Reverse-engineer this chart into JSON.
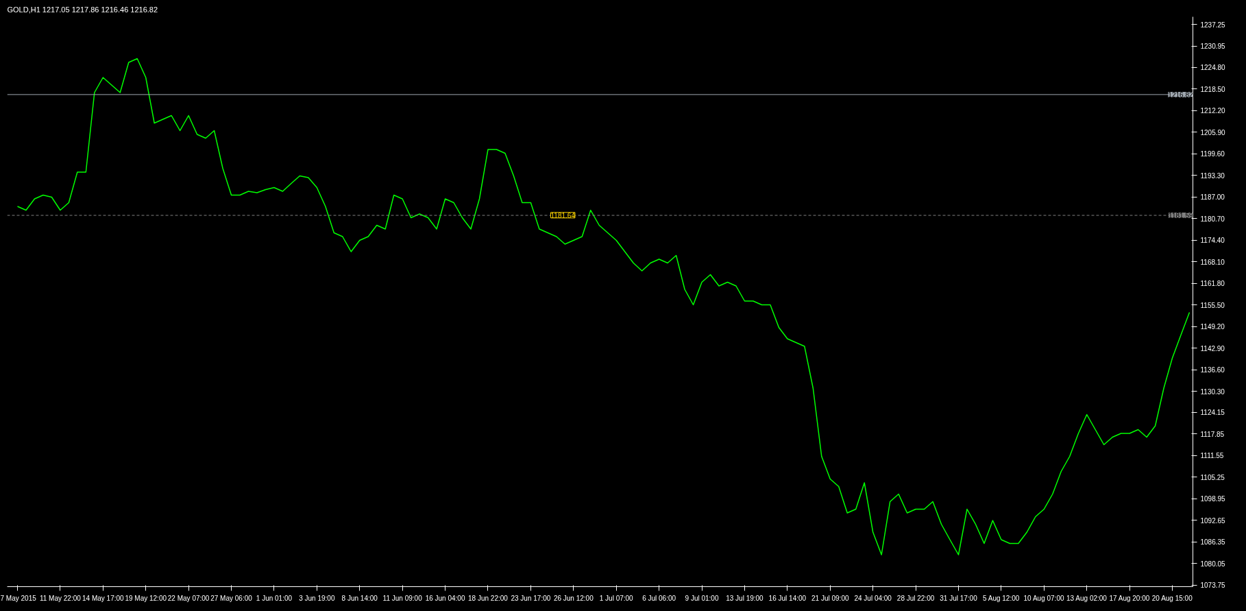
{
  "chart_data": {
    "type": "line",
    "title": "GOLD,H1  1217.05 1217.86 1216.46 1216.82",
    "categories": [
      "7 May 2015",
      null,
      null,
      null,
      null,
      "11 May 22:00",
      null,
      null,
      null,
      null,
      "14 May 17:00",
      null,
      null,
      null,
      null,
      "19 May 12:00",
      null,
      null,
      null,
      null,
      "22 May 07:00",
      null,
      null,
      null,
      null,
      "27 May 06:00",
      null,
      null,
      null,
      null,
      "1 Jun 01:00",
      null,
      null,
      null,
      null,
      "3 Jun 19:00",
      null,
      null,
      null,
      null,
      "8 Jun 14:00",
      null,
      null,
      null,
      null,
      "11 Jun 09:00",
      null,
      null,
      null,
      null,
      "16 Jun 04:00",
      null,
      null,
      null,
      null,
      "18 Jun 22:00",
      null,
      null,
      null,
      null,
      "23 Jun 17:00",
      null,
      null,
      null,
      null,
      "26 Jun 12:00",
      null,
      null,
      null,
      null,
      "1 Jul 07:00",
      null,
      null,
      null,
      null,
      "6 Jul 06:00",
      null,
      null,
      null,
      null,
      "9 Jul 01:00",
      null,
      null,
      null,
      null,
      "13 Jul 19:00",
      null,
      null,
      null,
      null,
      "16 Jul 14:00",
      null,
      null,
      null,
      null,
      "21 Jul 09:00",
      null,
      null,
      null,
      null,
      "24 Jul 04:00",
      null,
      null,
      null,
      null,
      "28 Jul 22:00",
      null,
      null,
      null,
      null,
      "31 Jul 17:00",
      null,
      null,
      null,
      null,
      "5 Aug 12:00",
      null,
      null,
      null,
      null,
      "10 Aug 07:00",
      null,
      null,
      null,
      null,
      "13 Aug 02:00",
      null,
      null,
      null,
      null,
      "17 Aug 20:00",
      null,
      null,
      null,
      null,
      "20 Aug 15:00",
      null,
      null
    ],
    "series": [
      {
        "color": "#00ff00",
        "values": [
          1184.2,
          1183.1,
          1186.4,
          1187.5,
          1186.9,
          1183.1,
          1185.3,
          1194.2,
          1194.2,
          1217.4,
          1221.8,
          1219.6,
          1217.4,
          1226.2,
          1227.3,
          1221.8,
          1208.5,
          1209.6,
          1210.7,
          1206.3,
          1210.7,
          1205.2,
          1204.1,
          1206.3,
          1195.3,
          1187.5,
          1187.5,
          1188.6,
          1188.2,
          1189.1,
          1189.7,
          1188.6,
          1190.9,
          1193.1,
          1192.6,
          1189.7,
          1184.2,
          1176.5,
          1175.4,
          1171.0,
          1174.3,
          1175.4,
          1178.7,
          1177.6,
          1187.5,
          1186.4,
          1180.9,
          1182.0,
          1180.9,
          1177.6,
          1186.4,
          1185.3,
          1180.9,
          1177.6,
          1186.4,
          1200.8,
          1200.8,
          1199.7,
          1193.1,
          1185.3,
          1185.3,
          1177.6,
          1176.5,
          1175.4,
          1173.2,
          1174.3,
          1175.4,
          1183.1,
          1178.7,
          1176.5,
          1174.3,
          1171.0,
          1167.7,
          1165.4,
          1167.7,
          1168.8,
          1167.7,
          1169.9,
          1160.0,
          1155.5,
          1162.1,
          1164.3,
          1161.0,
          1162.1,
          1161.0,
          1156.6,
          1156.6,
          1155.5,
          1155.5,
          1148.9,
          1145.6,
          1144.5,
          1143.4,
          1131.2,
          1111.3,
          1104.7,
          1102.5,
          1094.8,
          1095.9,
          1103.6,
          1089.2,
          1082.6,
          1098.1,
          1100.3,
          1094.8,
          1095.9,
          1095.9,
          1098.1,
          1091.5,
          1087.0,
          1082.6,
          1095.9,
          1091.5,
          1085.9,
          1092.6,
          1087.0,
          1085.9,
          1085.9,
          1089.2,
          1093.7,
          1095.9,
          1100.3,
          1106.9,
          1111.3,
          1117.9,
          1123.5,
          1119.1,
          1114.7,
          1116.9,
          1118.0,
          1118.0,
          1119.1,
          1116.9,
          1120.2,
          1131.2,
          1140.0,
          1146.7,
          1153.3
        ]
      }
    ],
    "ylim": [
      1073.3,
      1239.5
    ],
    "yticks": [
      "1237.25",
      "1230.95",
      "1224.80",
      "1218.50",
      "1212.20",
      "1205.90",
      "1199.60",
      "1193.30",
      "1187.00",
      "1180.70",
      "1174.40",
      "1168.10",
      "1161.80",
      "1155.50",
      "1149.20",
      "1142.90",
      "1136.60",
      "1130.30",
      "1124.15",
      "1117.85",
      "1111.55",
      "1105.25",
      "1098.95",
      "1092.65",
      "1086.35",
      "1080.05",
      "1073.75"
    ],
    "ref_lines": [
      {
        "axis": "y",
        "value": 1216.82,
        "label": "1216.82",
        "color": "#a0a8b0",
        "line_style": "solid"
      },
      {
        "axis": "y",
        "value": 1181.59,
        "label": "1181.59",
        "color": "#808080",
        "line_style": "dashed"
      }
    ],
    "annotations": [
      {
        "text": "1181.64",
        "y": 1181.64
      }
    ],
    "grid": false,
    "line_style": "solid",
    "marker": "none"
  }
}
